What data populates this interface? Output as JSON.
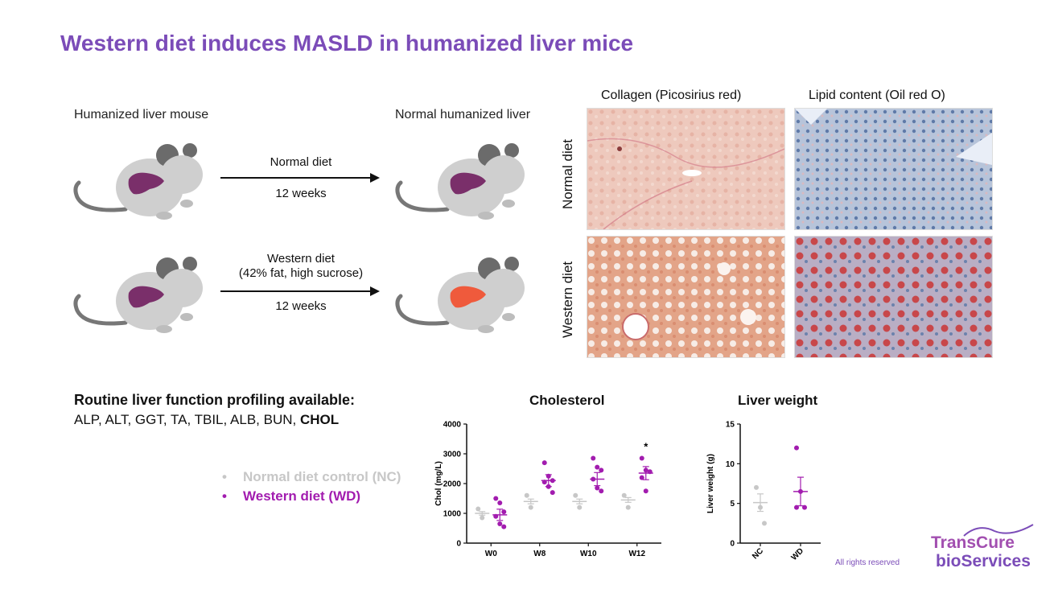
{
  "title": "Western diet induces MASLD in humanized liver mice",
  "diagram": {
    "left_label": "Humanized liver mouse",
    "right_label": "Normal humanized liver",
    "top_arrow": {
      "line1": "Normal diet",
      "line2": "12 weeks"
    },
    "bottom_arrow": {
      "line1": "Western diet",
      "line2": "(42% fat, high sucrose)",
      "line3": "12 weeks"
    }
  },
  "histology": {
    "col1": "Collagen (Picosirius red)",
    "col2": "Lipid content (Oil red O)",
    "row1": "Normal diet",
    "row2": "Western diet"
  },
  "profiling": {
    "heading": "Routine liver function profiling available:",
    "list_plain": "ALP, ALT, GGT, TA, TBIL, ALB, BUN, ",
    "list_bold": "CHOL"
  },
  "legend": {
    "nc": {
      "label": "Normal diet control (NC)",
      "color": "#c7c7c7"
    },
    "wd": {
      "label": "Western diet (WD)",
      "color": "#a21caf"
    }
  },
  "chart_data": [
    {
      "type": "scatter",
      "title": "Cholesterol",
      "xlabel": "",
      "ylabel": "Chol (mg/L)",
      "ylim": [
        0,
        4000
      ],
      "yticks": [
        "0",
        "1000",
        "2000",
        "3000",
        "4000"
      ],
      "categories": [
        "W0",
        "W8",
        "W10",
        "W12"
      ],
      "significance": [
        "",
        "",
        "",
        "*"
      ],
      "series": [
        {
          "name": "NC",
          "color": "#c7c7c7",
          "points": [
            [
              1150,
              850
            ],
            [
              1600,
              1200
            ],
            [
              1600,
              1200
            ],
            [
              1600,
              1200
            ]
          ],
          "mean": [
            1000,
            1400,
            1400,
            1450
          ]
        },
        {
          "name": "WD",
          "color": "#a21caf",
          "points": [
            [
              1500,
              1350,
              1050,
              900,
              650,
              550
            ],
            [
              2700,
              2250,
              2100,
              2050,
              1900,
              1700
            ],
            [
              2850,
              2550,
              2450,
              2150,
              1850,
              1750
            ],
            [
              2850,
              2450,
              2400,
              2200,
              1750
            ]
          ],
          "mean": [
            950,
            2100,
            2150,
            2350
          ]
        }
      ]
    },
    {
      "type": "scatter",
      "title": "Liver weight",
      "xlabel": "",
      "ylabel": "Liver weight (g)",
      "ylim": [
        0,
        15
      ],
      "yticks": [
        "0",
        "5",
        "10",
        "15"
      ],
      "categories": [
        "NC",
        "WD"
      ],
      "series": [
        {
          "name": "NC",
          "color": "#c7c7c7",
          "points": [
            [
              7,
              4.5,
              2.5
            ]
          ],
          "mean": [
            5.1
          ],
          "sem": [
            1.1
          ]
        },
        {
          "name": "WD",
          "color": "#a21caf",
          "points": [
            [
              12,
              6.5,
              4.5,
              4.5
            ]
          ],
          "mean": [
            6.5
          ],
          "sem": [
            1.8
          ]
        }
      ]
    }
  ],
  "brand": {
    "line1": "TransCure",
    "line2": "bioServices",
    "rights": "All rights reserved"
  }
}
